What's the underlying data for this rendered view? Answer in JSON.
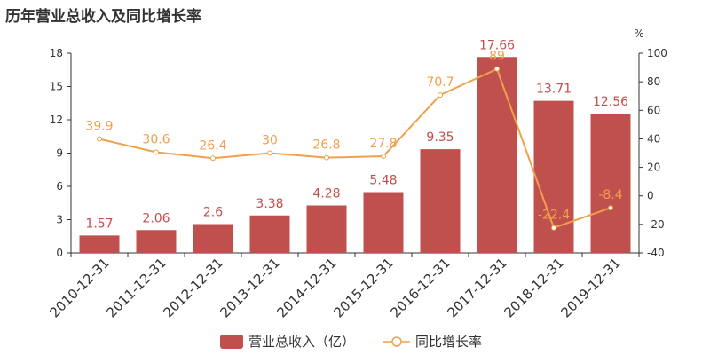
{
  "chart_data": {
    "type": "bar+line",
    "title": "历年营业总收入及同比增长率",
    "categories": [
      "2010-12-31",
      "2011-12-31",
      "2012-12-31",
      "2013-12-31",
      "2014-12-31",
      "2015-12-31",
      "2016-12-31",
      "2017-12-31",
      "2018-12-31",
      "2019-12-31"
    ],
    "series": [
      {
        "name": "营业总收入（亿）",
        "type": "bar",
        "axis": "left",
        "values": [
          1.57,
          2.06,
          2.6,
          3.38,
          4.28,
          5.48,
          9.35,
          17.66,
          13.71,
          12.56
        ],
        "labels": [
          "1.57",
          "2.06",
          "2.6",
          "3.38",
          "4.28",
          "5.48",
          "9.35",
          "17.66",
          "13.71",
          "12.56"
        ],
        "color": "#c0504d"
      },
      {
        "name": "同比增长率",
        "type": "line",
        "axis": "right",
        "values": [
          39.9,
          30.6,
          26.4,
          30,
          26.8,
          27.8,
          70.7,
          89,
          -22.4,
          -8.4
        ],
        "labels": [
          "39.9",
          "30.6",
          "26.4",
          "30",
          "26.8",
          "27.8",
          "70.7",
          "89",
          "-22.4",
          "-8.4"
        ],
        "color": "#f0a04b"
      }
    ],
    "left_axis": {
      "ylim": [
        0,
        18
      ],
      "ticks": [
        "0",
        "3",
        "6",
        "9",
        "12",
        "15",
        "18"
      ]
    },
    "right_axis": {
      "unit": "%",
      "ylim": [
        -40,
        100
      ],
      "ticks": [
        "-40",
        "-20",
        "0",
        "20",
        "40",
        "60",
        "80",
        "100"
      ]
    },
    "grid": false,
    "legend_position": "bottom-center"
  }
}
